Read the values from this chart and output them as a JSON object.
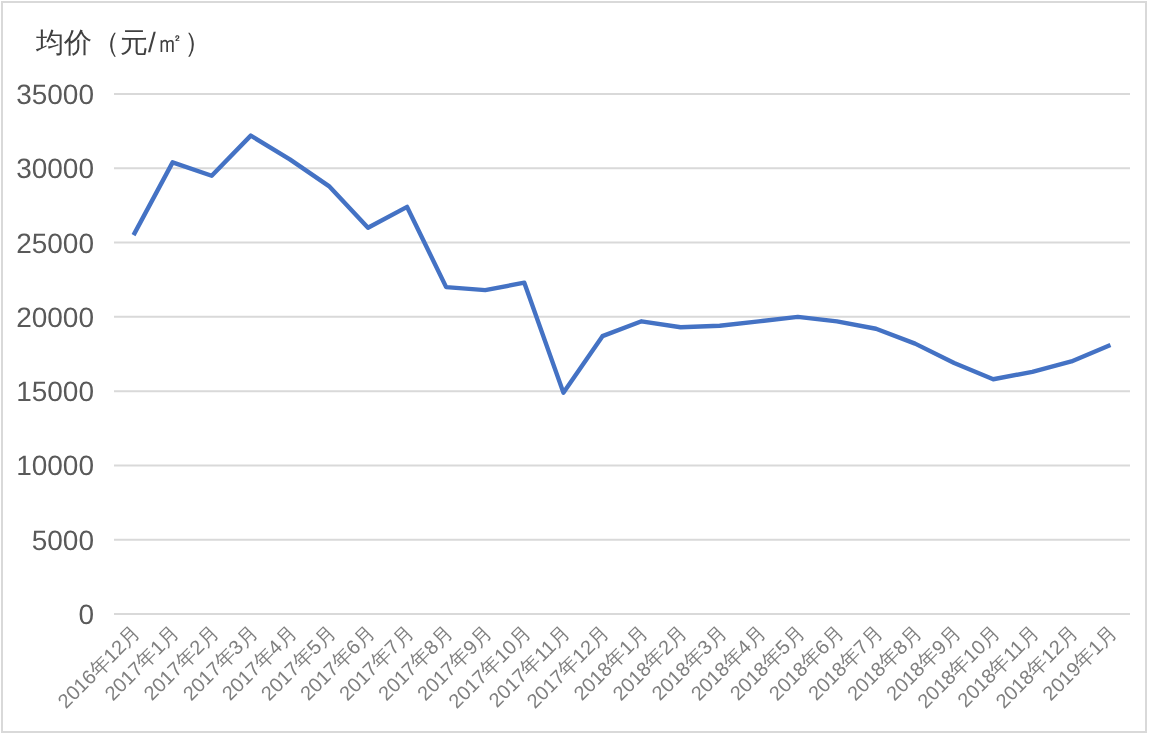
{
  "chart_data": {
    "type": "line",
    "ylabel": "均价（元/㎡）",
    "categories": [
      "2016年12月",
      "2017年1月",
      "2017年2月",
      "2017年3月",
      "2017年4月",
      "2017年5月",
      "2017年6月",
      "2017年7月",
      "2017年8月",
      "2017年9月",
      "2017年10月",
      "2017年11月",
      "2017年12月",
      "2018年1月",
      "2018年2月",
      "2018年3月",
      "2018年4月",
      "2018年5月",
      "2018年6月",
      "2018年7月",
      "2018年8月",
      "2018年9月",
      "2018年10月",
      "2018年11月",
      "2018年12月",
      "2019年1月"
    ],
    "series": [
      {
        "color": "#4472c4",
        "values": [
          25500,
          30400,
          29500,
          32200,
          30600,
          28800,
          26000,
          27400,
          22000,
          21800,
          22300,
          14900,
          18700,
          19700,
          19300,
          19400,
          19700,
          20000,
          19700,
          19200,
          18200,
          16900,
          15800,
          16300,
          17000,
          18100
        ]
      }
    ],
    "ylim": [
      0,
      35000
    ],
    "yticks": [
      0,
      5000,
      10000,
      15000,
      20000,
      25000,
      30000,
      35000
    ],
    "grid": "y",
    "marker": "none",
    "line_style": "solid"
  }
}
